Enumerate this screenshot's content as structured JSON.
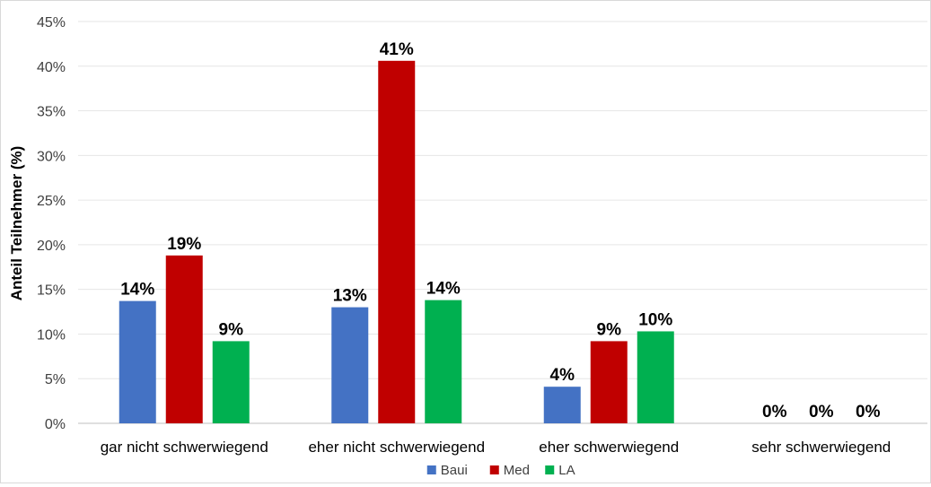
{
  "chart_data": {
    "type": "bar",
    "ylabel": "Anteil Teilnehmer (%)",
    "xlabel": "",
    "ylim": [
      0,
      45
    ],
    "y_ticks": [
      0,
      5,
      10,
      15,
      20,
      25,
      30,
      35,
      40,
      45
    ],
    "y_tick_labels": [
      "0%",
      "5%",
      "10%",
      "15%",
      "20%",
      "25%",
      "30%",
      "35%",
      "40%",
      "45%"
    ],
    "grid": true,
    "legend_position": "bottom",
    "categories": [
      "gar nicht schwerwiegend",
      "eher nicht schwerwiegend",
      "eher schwerwiegend",
      "sehr schwerwiegend"
    ],
    "series": [
      {
        "name": "Baui",
        "color": "#4472C4",
        "values": [
          13.7,
          13.0,
          4.1,
          0
        ],
        "labels": [
          "14%",
          "13%",
          "4%",
          "0%"
        ]
      },
      {
        "name": "Med",
        "color": "#C00000",
        "values": [
          18.8,
          40.6,
          9.2,
          0
        ],
        "labels": [
          "19%",
          "41%",
          "9%",
          "0%"
        ]
      },
      {
        "name": "LA",
        "color": "#00B050",
        "values": [
          9.2,
          13.8,
          10.3,
          0
        ],
        "labels": [
          "9%",
          "14%",
          "10%",
          "0%"
        ]
      }
    ]
  }
}
